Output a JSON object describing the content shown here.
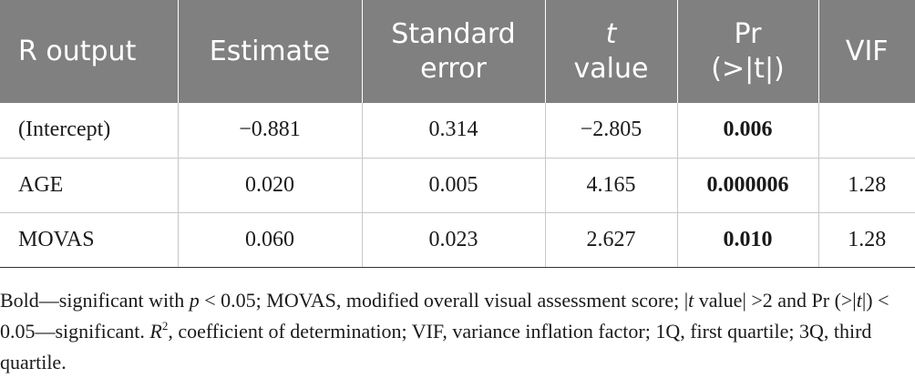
{
  "table": {
    "headers": {
      "col1": "R output",
      "col2": "Estimate",
      "col3_line1": "Standard",
      "col3_line2": "error",
      "col4_line1": "t",
      "col4_line2": "value",
      "col5_line1": "Pr",
      "col5_line2": "(>|t|)",
      "col6": "VIF"
    },
    "rows": [
      {
        "term": "(Intercept)",
        "estimate": "−0.881",
        "std_error": "0.314",
        "t_value": "−2.805",
        "pr": "0.006",
        "vif": ""
      },
      {
        "term": "AGE",
        "estimate": "0.020",
        "std_error": "0.005",
        "t_value": "4.165",
        "pr": "0.000006",
        "vif": "1.28"
      },
      {
        "term": "MOVAS",
        "estimate": "0.060",
        "std_error": "0.023",
        "t_value": "2.627",
        "pr": "0.010",
        "vif": "1.28"
      }
    ]
  },
  "footnote": {
    "s1": "Bold—significant with ",
    "p_var": "p",
    "s2": " < 0.05; MOVAS, modified overall visual assessment score; |",
    "t_var1": "t",
    "s3": " value| >2 and Pr (>|",
    "t_var2": "t",
    "s4": "|) < 0.05—significant. ",
    "r_var": "R",
    "r_sup": "2",
    "s5": ", coefficient of determination; VIF, variance inflation factor; 1Q, first quartile; 3Q, third quartile."
  }
}
